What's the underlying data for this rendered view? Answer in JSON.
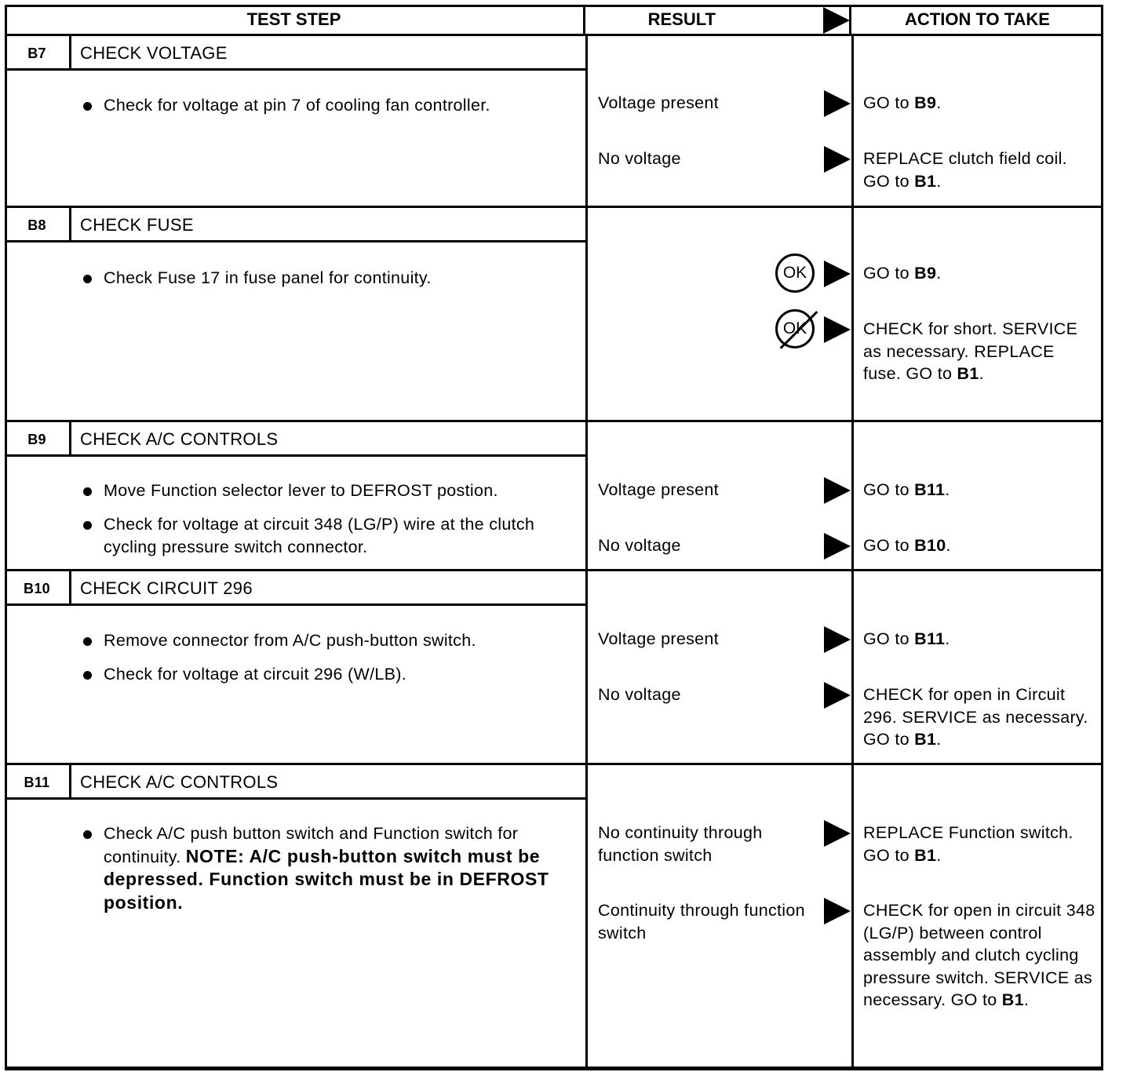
{
  "header": {
    "test_step": "TEST STEP",
    "result": "RESULT",
    "action": "ACTION TO TAKE"
  },
  "sections": [
    {
      "id": "B7",
      "title": "CHECK VOLTAGE",
      "bullets": [
        [
          {
            "t": "Check for voltage at pin 7 of cooling fan controller.",
            "b": false
          }
        ]
      ],
      "results": [
        {
          "label": "Voltage present",
          "action": [
            {
              "t": "GO to ",
              "b": false
            },
            {
              "t": "B9",
              "b": true
            },
            {
              "t": ".",
              "b": false
            }
          ]
        },
        {
          "label": "No voltage",
          "action": [
            {
              "t": "REPLACE clutch field coil. GO to ",
              "b": false
            },
            {
              "t": "B1",
              "b": true
            },
            {
              "t": ".",
              "b": false
            }
          ]
        }
      ]
    },
    {
      "id": "B8",
      "title": "CHECK FUSE",
      "bullets": [
        [
          {
            "t": "Check Fuse 17 in fuse panel for continuity.",
            "b": false
          }
        ]
      ],
      "results": [
        {
          "label": "",
          "symbol": "OK",
          "crossed": false,
          "action": [
            {
              "t": "GO to ",
              "b": false
            },
            {
              "t": "B9",
              "b": true
            },
            {
              "t": ".",
              "b": false
            }
          ]
        },
        {
          "label": "",
          "symbol": "OK",
          "crossed": true,
          "action": [
            {
              "t": "CHECK for short. SERVICE as necessary. REPLACE fuse. GO to ",
              "b": false
            },
            {
              "t": "B1",
              "b": true
            },
            {
              "t": ".",
              "b": false
            }
          ]
        }
      ]
    },
    {
      "id": "B9",
      "title": "CHECK A/C CONTROLS",
      "bullets": [
        [
          {
            "t": "Move Function selector lever to DEFROST postion.",
            "b": false
          }
        ],
        [
          {
            "t": "Check for voltage at circuit 348 (LG/P) wire at the clutch cycling pressure switch connector.",
            "b": false
          }
        ]
      ],
      "results": [
        {
          "label": "Voltage present",
          "action": [
            {
              "t": "GO to ",
              "b": false
            },
            {
              "t": "B11",
              "b": true
            },
            {
              "t": ".",
              "b": false
            }
          ]
        },
        {
          "label": "No voltage",
          "action": [
            {
              "t": "GO to ",
              "b": false
            },
            {
              "t": "B10",
              "b": true
            },
            {
              "t": ".",
              "b": false
            }
          ]
        }
      ]
    },
    {
      "id": "B10",
      "title": "CHECK CIRCUIT 296",
      "bullets": [
        [
          {
            "t": "Remove connector from A/C push-button switch.",
            "b": false
          }
        ],
        [
          {
            "t": "Check for voltage at circuit 296 (W/LB).",
            "b": false
          }
        ]
      ],
      "results": [
        {
          "label": "Voltage present",
          "action": [
            {
              "t": "GO to ",
              "b": false
            },
            {
              "t": "B11",
              "b": true
            },
            {
              "t": ".",
              "b": false
            }
          ]
        },
        {
          "label": "No voltage",
          "action": [
            {
              "t": "CHECK for open in Circuit 296. SERVICE as necessary. GO to ",
              "b": false
            },
            {
              "t": "B1",
              "b": true
            },
            {
              "t": ".",
              "b": false
            }
          ]
        }
      ]
    },
    {
      "id": "B11",
      "title": "CHECK A/C CONTROLS",
      "bullets": [
        [
          {
            "t": "Check A/C push button switch and Function switch for continuity. ",
            "b": false
          },
          {
            "t": "NOTE: A/C push-button switch must be depressed. Function switch must be in DEFROST position.",
            "b": true
          }
        ]
      ],
      "results": [
        {
          "label": "No continuity through function switch",
          "action": [
            {
              "t": "REPLACE Function switch. GO to ",
              "b": false
            },
            {
              "t": "B1",
              "b": true
            },
            {
              "t": ".",
              "b": false
            }
          ]
        },
        {
          "label": "Continuity through function switch",
          "action": [
            {
              "t": "CHECK for open in circuit 348 (LG/P) between control assembly and clutch cycling pressure switch. SERVICE as necessary. GO to ",
              "b": false
            },
            {
              "t": "B1",
              "b": true
            },
            {
              "t": ".",
              "b": false
            }
          ]
        }
      ]
    }
  ]
}
